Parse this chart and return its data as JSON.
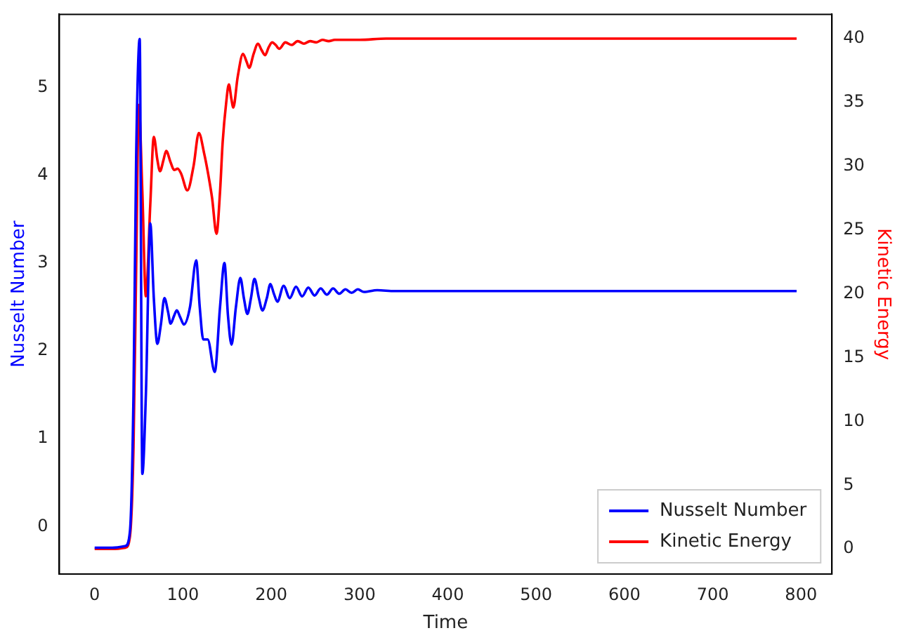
{
  "chart_data": {
    "type": "line",
    "xlabel": "Time",
    "ylabel": "Nusselt Number",
    "y2label": "Kinetic Energy",
    "xlim": [
      -40,
      835
    ],
    "xticks": [
      0,
      100,
      200,
      300,
      400,
      500,
      600,
      700,
      800
    ],
    "ylim": [
      -0.54,
      5.83
    ],
    "yticks": [
      0,
      1,
      2,
      3,
      4,
      5
    ],
    "y2lim": [
      -1.97,
      41.9
    ],
    "y2ticks": [
      0,
      5,
      10,
      15,
      20,
      25,
      30,
      35,
      40
    ],
    "legend": "bottom right",
    "grid": false,
    "marker": "none",
    "line_style": "solid",
    "series": [
      {
        "name": "Nusselt Number",
        "color": "#0000ff",
        "x": [
          0,
          20,
          35,
          40,
          44,
          47,
          51,
          54,
          58,
          63,
          67,
          71,
          75,
          79,
          83,
          86,
          90,
          93,
          97,
          101,
          108,
          115,
          119,
          123,
          128,
          136,
          142,
          147,
          151,
          155,
          160,
          165,
          169,
          173,
          177,
          181,
          186,
          190,
          195,
          199,
          203,
          207,
          214,
          221,
          228,
          235,
          242,
          249,
          256,
          263,
          270,
          277,
          284,
          291,
          298,
          305,
          320,
          340,
          360,
          400,
          500,
          600,
          700,
          795
        ],
        "values": [
          -0.24,
          -0.24,
          -0.22,
          -0.05,
          1.5,
          4.2,
          5.55,
          0.6,
          1.5,
          3.45,
          2.6,
          2.08,
          2.3,
          2.6,
          2.45,
          2.31,
          2.4,
          2.46,
          2.38,
          2.3,
          2.5,
          3.03,
          2.5,
          2.13,
          2.13,
          1.76,
          2.5,
          3.0,
          2.4,
          2.07,
          2.5,
          2.83,
          2.6,
          2.42,
          2.6,
          2.82,
          2.6,
          2.46,
          2.6,
          2.76,
          2.65,
          2.56,
          2.74,
          2.6,
          2.73,
          2.62,
          2.72,
          2.63,
          2.71,
          2.64,
          2.71,
          2.65,
          2.7,
          2.66,
          2.7,
          2.67,
          2.69,
          2.68,
          2.68,
          2.68,
          2.68,
          2.68,
          2.68,
          2.68
        ]
      },
      {
        "name": "Kinetic Energy",
        "color": "#ff0000",
        "axis": "y2",
        "x": [
          0,
          20,
          35,
          40,
          44,
          47,
          50,
          54,
          58,
          63,
          67,
          71,
          74,
          78,
          81,
          86,
          90,
          94,
          98,
          105,
          112,
          118,
          124,
          128,
          133,
          138,
          142,
          145,
          149,
          152,
          155,
          157,
          162,
          168,
          172,
          175,
          180,
          185,
          189,
          193,
          197,
          201,
          205,
          209,
          216,
          223,
          230,
          237,
          244,
          251,
          258,
          265,
          272,
          280,
          300,
          330,
          400,
          500,
          600,
          700,
          795
        ],
        "values": [
          0,
          0,
          0.1,
          1,
          8,
          22,
          34.8,
          28,
          19.8,
          27,
          32.3,
          30.5,
          29.6,
          30.5,
          31.2,
          30.3,
          29.7,
          29.8,
          29.4,
          28.1,
          30,
          32.6,
          31,
          29.6,
          27.5,
          24.7,
          28,
          31.9,
          35,
          36.4,
          35.2,
          34.6,
          37,
          38.8,
          38.2,
          37.7,
          38.8,
          39.6,
          39.1,
          38.7,
          39.3,
          39.7,
          39.5,
          39.2,
          39.7,
          39.5,
          39.8,
          39.6,
          39.8,
          39.7,
          39.9,
          39.8,
          39.9,
          39.9,
          39.9,
          40,
          40,
          40,
          40,
          40,
          40
        ]
      }
    ]
  }
}
